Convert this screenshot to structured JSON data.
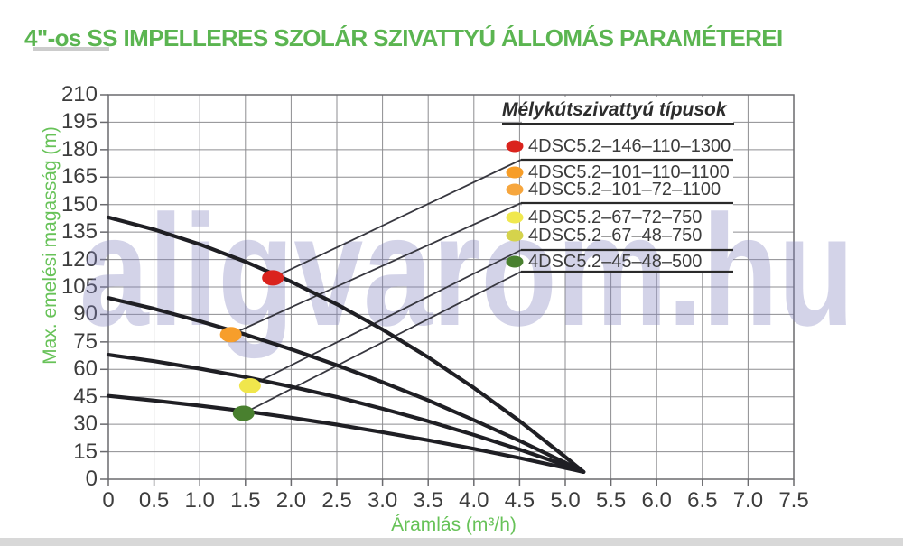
{
  "page": {
    "title": "4\"-os SS IMPELLERES SZOLÁR SZIVATTYÚ ÁLLOMÁS PARAMÉTEREI",
    "watermark": "aligvarom.hu"
  },
  "colors": {
    "title_green": "#5bb551",
    "axis_label_green": "#67c258",
    "tick_label": "#3d3d3d",
    "grid": "#8d8d90",
    "frame": "#6a6a6e",
    "curve": "#1f1f24",
    "connector": "#37373f",
    "underline": "#2a2a2a",
    "legend_text": "#3c3c3c",
    "watermark": "#8080bd",
    "legend_box": "#ffffff",
    "title_rule": "#cccccc",
    "bottom_band": "#d8d8d8"
  },
  "chart_data": {
    "type": "line",
    "title": "",
    "xlabel": "Áramlás (m³/h)",
    "ylabel": "Max. emelési magasság (m)",
    "xlim": [
      0,
      7.5
    ],
    "ylim": [
      0,
      210
    ],
    "grid": true,
    "x_ticks": [
      "0",
      "0.5",
      "1.0",
      "1.5",
      "2.0",
      "2.5",
      "3.0",
      "3.5",
      "4.0",
      "4.5",
      "5.0",
      "5.5",
      "6.0",
      "6.5",
      "7.0",
      "7.5"
    ],
    "y_ticks": [
      "0",
      "15",
      "30",
      "45",
      "60",
      "75",
      "90",
      "105",
      "120",
      "135",
      "150",
      "165",
      "180",
      "195",
      "210"
    ],
    "legend_title": "Mélykútszivattyú típusok",
    "curves": [
      {
        "group": "146",
        "marker_color": "#da231d",
        "operating_point": {
          "x": 1.8,
          "y": 110
        },
        "points": [
          [
            0,
            143
          ],
          [
            0.5,
            136.4
          ],
          [
            1,
            128.3
          ],
          [
            1.5,
            118.8
          ],
          [
            2,
            107.9
          ],
          [
            2.5,
            95.6
          ],
          [
            3,
            81.8
          ],
          [
            3.5,
            66.6
          ],
          [
            4,
            49.9
          ],
          [
            4.5,
            31.8
          ],
          [
            5,
            12.2
          ],
          [
            5.2,
            4
          ]
        ]
      },
      {
        "group": "101",
        "marker_color": "#f79e2b",
        "operating_point": {
          "x": 1.34,
          "y": 79
        },
        "points": [
          [
            0,
            99
          ],
          [
            0.5,
            93.1
          ],
          [
            1,
            86.3
          ],
          [
            1.5,
            79
          ],
          [
            2,
            71
          ],
          [
            2.5,
            62.3
          ],
          [
            3,
            53
          ],
          [
            3.5,
            43.1
          ],
          [
            4,
            32.3
          ],
          [
            4.5,
            21
          ],
          [
            5,
            9
          ],
          [
            5.2,
            4
          ]
        ]
      },
      {
        "group": "67",
        "marker_color": "#f0e64c",
        "operating_point": {
          "x": 1.55,
          "y": 51
        },
        "points": [
          [
            0,
            68
          ],
          [
            0.5,
            64.5
          ],
          [
            1,
            60.4
          ],
          [
            1.5,
            55.8
          ],
          [
            2,
            50.6
          ],
          [
            2.5,
            44.9
          ],
          [
            3,
            38.5
          ],
          [
            3.5,
            31.7
          ],
          [
            4,
            24.2
          ],
          [
            4.5,
            16.2
          ],
          [
            5,
            7.6
          ],
          [
            5.2,
            4
          ]
        ]
      },
      {
        "group": "45",
        "marker_color": "#49802f",
        "operating_point": {
          "x": 1.48,
          "y": 36
        },
        "points": [
          [
            0,
            45.5
          ],
          [
            0.5,
            43
          ],
          [
            1,
            40.2
          ],
          [
            1.5,
            37.1
          ],
          [
            2,
            33.6
          ],
          [
            2.5,
            29.8
          ],
          [
            3,
            25.7
          ],
          [
            3.5,
            21.3
          ],
          [
            4,
            16.6
          ],
          [
            4.5,
            11.6
          ],
          [
            5,
            6.2
          ],
          [
            5.2,
            4
          ]
        ]
      }
    ],
    "legend_entries": [
      {
        "label": "4DSC5.2–146–110–1300",
        "dot_color": "#da231d",
        "curve_index": 0
      },
      {
        "label": "4DSC5.2–101–110–1100",
        "dot_color": "#f79d27",
        "curve_index": 1
      },
      {
        "label": "4DSC5.2–101–72–1100",
        "dot_color": "#f6a63e",
        "curve_index": 1
      },
      {
        "label": "4DSC5.2–67–72–750",
        "dot_color": "#f0e84f",
        "curve_index": 2
      },
      {
        "label": "4DSC5.2–67–48–750",
        "dot_color": "#d5d34c",
        "curve_index": 2
      },
      {
        "label": "4DSC5.2–45–48–500",
        "dot_color": "#49802f",
        "curve_index": 3
      }
    ]
  }
}
